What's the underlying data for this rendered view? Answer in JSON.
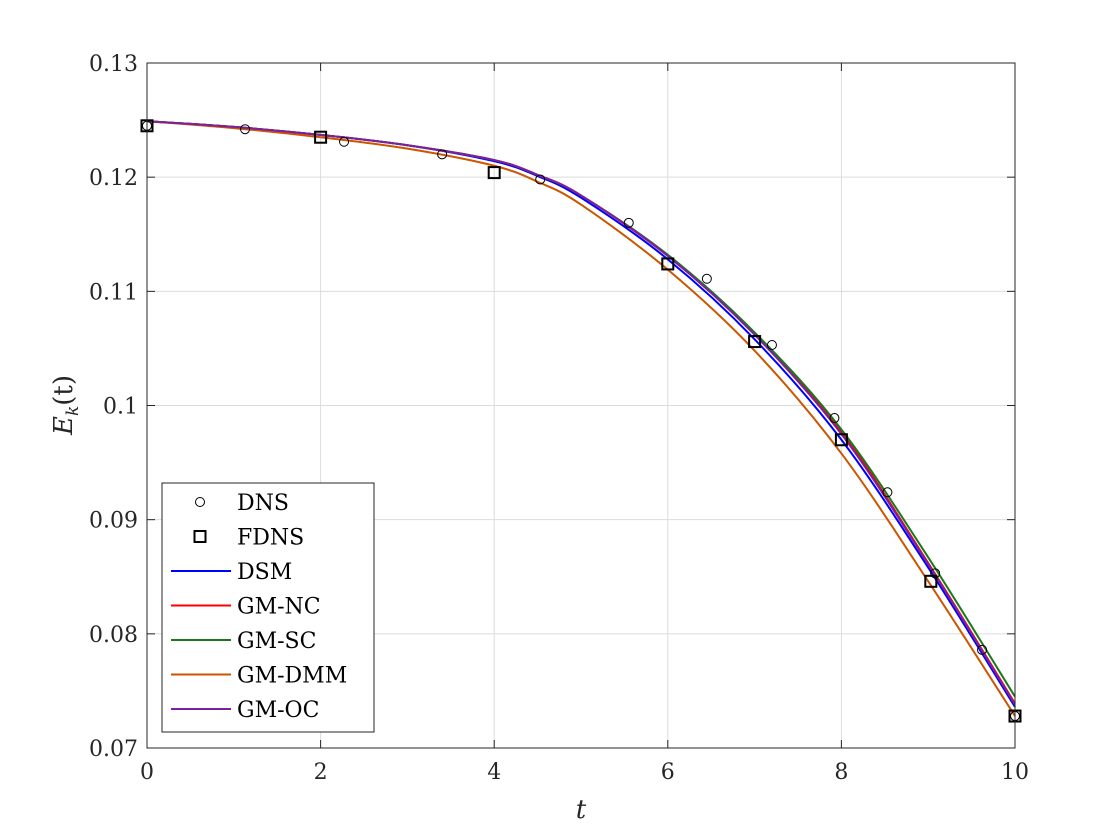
{
  "chart_data": {
    "type": "line",
    "xlabel": "t",
    "ylabel": {
      "main": "E",
      "subscript": "k",
      "suffix": "(t)"
    },
    "xlim": [
      0,
      10
    ],
    "ylim": [
      0.07,
      0.13
    ],
    "xticks": [
      0,
      2,
      4,
      6,
      8,
      10
    ],
    "xtick_labels": [
      "0",
      "2",
      "4",
      "6",
      "8",
      "10"
    ],
    "yticks": [
      0.07,
      0.08,
      0.09,
      0.1,
      0.11,
      0.12,
      0.13
    ],
    "ytick_labels": [
      "0.07",
      "0.08",
      "0.09",
      "0.1",
      "0.11",
      "0.12",
      "0.13"
    ],
    "grid": true,
    "legend_position": "bottom-left",
    "series": [
      {
        "name": "DNS",
        "kind": "markers",
        "marker": "circle",
        "color": "#000000",
        "x": [
          0,
          1.13,
          2.27,
          3.4,
          4.53,
          5.55,
          6.45,
          7.2,
          7.92,
          8.53,
          9.08,
          9.62,
          10.0
        ],
        "y": [
          0.1245,
          0.1242,
          0.1231,
          0.122,
          0.1198,
          0.116,
          0.1111,
          0.1053,
          0.0989,
          0.0924,
          0.0853,
          0.0786,
          0.0728
        ]
      },
      {
        "name": "FDNS",
        "kind": "markers",
        "marker": "square",
        "color": "#000000",
        "x": [
          0,
          2,
          4,
          6,
          7,
          8,
          9.03,
          10.0
        ],
        "y": [
          0.1245,
          0.1235,
          0.1204,
          0.1124,
          0.1056,
          0.097,
          0.0846,
          0.0728
        ]
      },
      {
        "name": "DSM",
        "kind": "line",
        "color": "#0000ff",
        "x": [
          0,
          1,
          2,
          3,
          4,
          4.5,
          5,
          6,
          7,
          8,
          9,
          10
        ],
        "y": [
          0.1249,
          0.1244,
          0.1237,
          0.1228,
          0.1214,
          0.1201,
          0.1182,
          0.1128,
          0.1058,
          0.097,
          0.0858,
          0.0736
        ]
      },
      {
        "name": "GM-NC",
        "kind": "line",
        "color": "#ff0000",
        "x": [
          0,
          1,
          2,
          3,
          4,
          4.5,
          5,
          6,
          7,
          8,
          9,
          10
        ],
        "y": [
          0.1249,
          0.1244,
          0.1237,
          0.1228,
          0.1215,
          0.1202,
          0.1184,
          0.1131,
          0.1063,
          0.0977,
          0.0862,
          0.0739
        ]
      },
      {
        "name": "GM-SC",
        "kind": "line",
        "color": "#1a7a1a",
        "x": [
          0,
          1,
          2,
          3,
          4,
          4.5,
          5,
          6,
          7,
          8,
          9,
          10
        ],
        "y": [
          0.1249,
          0.1244,
          0.1237,
          0.1228,
          0.1215,
          0.1202,
          0.1184,
          0.1132,
          0.1064,
          0.0979,
          0.0867,
          0.0745
        ]
      },
      {
        "name": "GM-DMM",
        "kind": "line",
        "color": "#cc5500",
        "x": [
          0,
          1,
          2,
          3,
          4,
          4.5,
          5,
          6,
          7,
          8,
          9,
          10
        ],
        "y": [
          0.1249,
          0.1243,
          0.1235,
          0.1225,
          0.121,
          0.1196,
          0.1176,
          0.1119,
          0.1048,
          0.0958,
          0.0846,
          0.0728
        ]
      },
      {
        "name": "GM-OC",
        "kind": "line",
        "color": "#7e1f9e",
        "x": [
          0,
          1,
          2,
          3,
          4,
          4.5,
          5,
          6,
          7,
          8,
          9,
          10
        ],
        "y": [
          0.1249,
          0.1244,
          0.1237,
          0.1228,
          0.1215,
          0.1202,
          0.1184,
          0.1131,
          0.1062,
          0.0975,
          0.0861,
          0.0738
        ]
      }
    ]
  }
}
